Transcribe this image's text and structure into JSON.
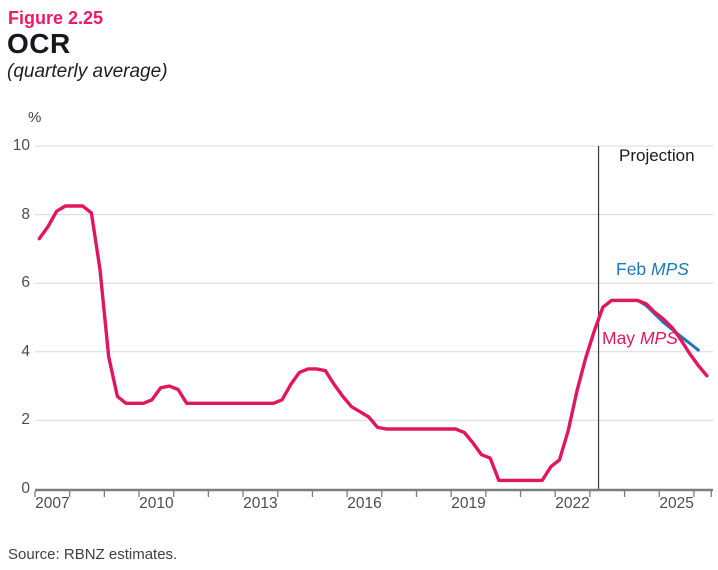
{
  "figure": {
    "label": "Figure 2.25",
    "title": "OCR",
    "subtitle": "(quarterly average)"
  },
  "source": "Source: RBNZ estimates.",
  "chart_data": {
    "type": "line",
    "title": "OCR (quarterly average)",
    "unit_label": "%",
    "xlabel": "",
    "ylabel": "%",
    "ylim": [
      0,
      10
    ],
    "y_ticks": [
      0,
      2,
      4,
      6,
      8,
      10
    ],
    "xlim": [
      2007,
      2026.55
    ],
    "x_major_tick_years": [
      2007,
      2010,
      2013,
      2016,
      2019,
      2022,
      2025
    ],
    "x_minor_tick_step_years": 1,
    "grid": "horizontal-only",
    "legend_position": "inline-annotations",
    "projection": {
      "label": "Projection",
      "divider_x": 2023.25
    },
    "annotations": [
      {
        "name": "feb-mps",
        "prefix": "Feb ",
        "italic": "MPS",
        "color": "#1879C0"
      },
      {
        "name": "may-mps",
        "prefix": "May ",
        "italic": "MPS",
        "color": "#E0175F"
      }
    ],
    "series": [
      {
        "name": "Feb MPS",
        "color": "#1879C0",
        "stroke_width": 3,
        "x_start": 2023.125,
        "x_step": 0.25,
        "values": [
          4.6,
          5.3,
          5.5,
          5.5,
          5.5,
          5.5,
          5.35,
          5.1,
          4.85,
          4.65,
          4.45,
          4.25,
          4.05
        ]
      },
      {
        "name": "May MPS",
        "color": "#E0175F",
        "stroke_width": 3.4,
        "x_start": 2007.125,
        "x_step": 0.25,
        "values": [
          7.3,
          7.65,
          8.1,
          8.25,
          8.25,
          8.25,
          8.05,
          6.4,
          3.85,
          2.7,
          2.5,
          2.5,
          2.5,
          2.6,
          2.95,
          3.0,
          2.9,
          2.5,
          2.5,
          2.5,
          2.5,
          2.5,
          2.5,
          2.5,
          2.5,
          2.5,
          2.5,
          2.5,
          2.6,
          3.05,
          3.4,
          3.5,
          3.5,
          3.45,
          3.05,
          2.7,
          2.4,
          2.25,
          2.1,
          1.8,
          1.75,
          1.75,
          1.75,
          1.75,
          1.75,
          1.75,
          1.75,
          1.75,
          1.75,
          1.65,
          1.35,
          1.0,
          0.9,
          0.25,
          0.25,
          0.25,
          0.25,
          0.25,
          0.25,
          0.65,
          0.85,
          1.7,
          2.85,
          3.8,
          4.6,
          5.3,
          5.5,
          5.5,
          5.5,
          5.5,
          5.4,
          5.15,
          4.95,
          4.7,
          4.35,
          3.95,
          3.6,
          3.3
        ]
      }
    ],
    "colors": {
      "grid": "#D8D8D8",
      "axis": "#7D7D7D",
      "projection_divider": "#3A3A3A",
      "tick_label": "#4D4D4D",
      "accent_pink": "#E0175F",
      "accent_blue": "#1879C0",
      "figure_label_pink": "#ED1A68"
    }
  }
}
